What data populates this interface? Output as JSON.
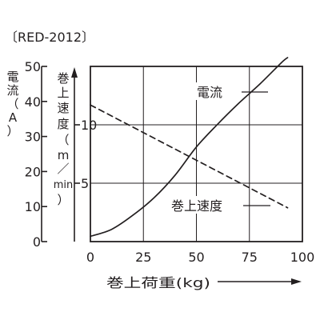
{
  "model": "〔RED-2012〕",
  "chart_data": {
    "type": "line",
    "xlabel": "巻上荷重(kg)",
    "x_ticks": [
      "0",
      "25",
      "50",
      "75",
      "100"
    ],
    "xlim": [
      0,
      100
    ],
    "y_left": {
      "label_chars": [
        "電",
        "流",
        "（",
        "A",
        "）"
      ],
      "ticks": [
        "0",
        "10",
        "20",
        "30",
        "40",
        "50"
      ],
      "range": [
        0,
        50
      ]
    },
    "y_right": {
      "label_chars": [
        "巻",
        "上",
        "速",
        "度",
        "（",
        "m",
        "／",
        "min",
        "）"
      ],
      "ticks": [
        "5",
        "10"
      ],
      "range": [
        0,
        15
      ]
    },
    "grid": true,
    "series": [
      {
        "name": "電流",
        "axis": "left",
        "style": "solid",
        "x": [
          0,
          10,
          20,
          30,
          40,
          50,
          60,
          70,
          80,
          90,
          93
        ],
        "y": [
          1.5,
          3.5,
          7.5,
          12.5,
          19,
          27,
          33.5,
          39.5,
          45,
          51,
          52.5
        ]
      },
      {
        "name": "巻上速度",
        "axis": "right",
        "style": "dashed",
        "x": [
          0,
          93
        ],
        "y": [
          11.7,
          2.9
        ]
      }
    ]
  }
}
